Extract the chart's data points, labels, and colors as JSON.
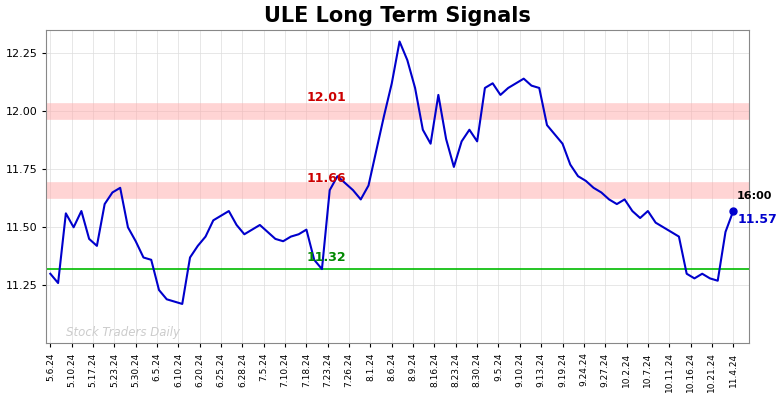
{
  "title": "ULE Long Term Signals",
  "title_fontsize": 15,
  "background_color": "#ffffff",
  "line_color": "#0000cc",
  "line_width": 1.5,
  "hline_green": 11.32,
  "hline_green_color": "#00bb00",
  "hline_red1": 12.0,
  "hline_red1_color": "#ffaaaa",
  "hline_red2": 11.66,
  "hline_red2_color": "#ffaaaa",
  "label_12_01": "12.01",
  "label_11_66": "11.66",
  "label_11_32": "11.32",
  "label_color_red": "#cc0000",
  "label_color_green": "#008800",
  "end_label_time": "16:00",
  "end_label_price": "11.57",
  "end_label_color": "#0000cc",
  "watermark": "Stock Traders Daily",
  "watermark_color": "#cccccc",
  "ylim": [
    11.0,
    12.35
  ],
  "yticks": [
    11.25,
    11.5,
    11.75,
    12.0,
    12.25
  ],
  "xtick_labels": [
    "5.6.24",
    "5.10.24",
    "5.17.24",
    "5.23.24",
    "5.30.24",
    "6.5.24",
    "6.10.24",
    "6.20.24",
    "6.25.24",
    "6.28.24",
    "7.5.24",
    "7.10.24",
    "7.18.24",
    "7.23.24",
    "7.26.24",
    "8.1.24",
    "8.6.24",
    "8.9.24",
    "8.16.24",
    "8.23.24",
    "8.30.24",
    "9.5.24",
    "9.10.24",
    "9.13.24",
    "9.19.24",
    "9.24.24",
    "9.27.24",
    "10.2.24",
    "10.7.24",
    "10.11.24",
    "10.16.24",
    "10.21.24",
    "11.4.24"
  ],
  "prices": [
    11.3,
    11.26,
    11.56,
    11.5,
    11.57,
    11.45,
    11.42,
    11.6,
    11.65,
    11.67,
    11.5,
    11.44,
    11.37,
    11.36,
    11.23,
    11.19,
    11.18,
    11.17,
    11.37,
    11.42,
    11.46,
    11.53,
    11.55,
    11.57,
    11.51,
    11.47,
    11.49,
    11.51,
    11.48,
    11.45,
    11.44,
    11.46,
    11.47,
    11.49,
    11.36,
    11.32,
    11.66,
    11.72,
    11.69,
    11.66,
    11.62,
    11.68,
    11.83,
    11.98,
    12.12,
    12.3,
    12.22,
    12.1,
    11.92,
    11.86,
    12.07,
    11.88,
    11.76,
    11.87,
    11.92,
    11.87,
    12.1,
    12.12,
    12.07,
    12.1,
    12.12,
    12.14,
    12.11,
    12.1,
    11.94,
    11.9,
    11.86,
    11.77,
    11.72,
    11.7,
    11.67,
    11.65,
    11.62,
    11.6,
    11.62,
    11.57,
    11.54,
    11.57,
    11.52,
    11.5,
    11.48,
    11.46,
    11.3,
    11.28,
    11.3,
    11.28,
    11.27,
    11.48,
    11.57
  ]
}
